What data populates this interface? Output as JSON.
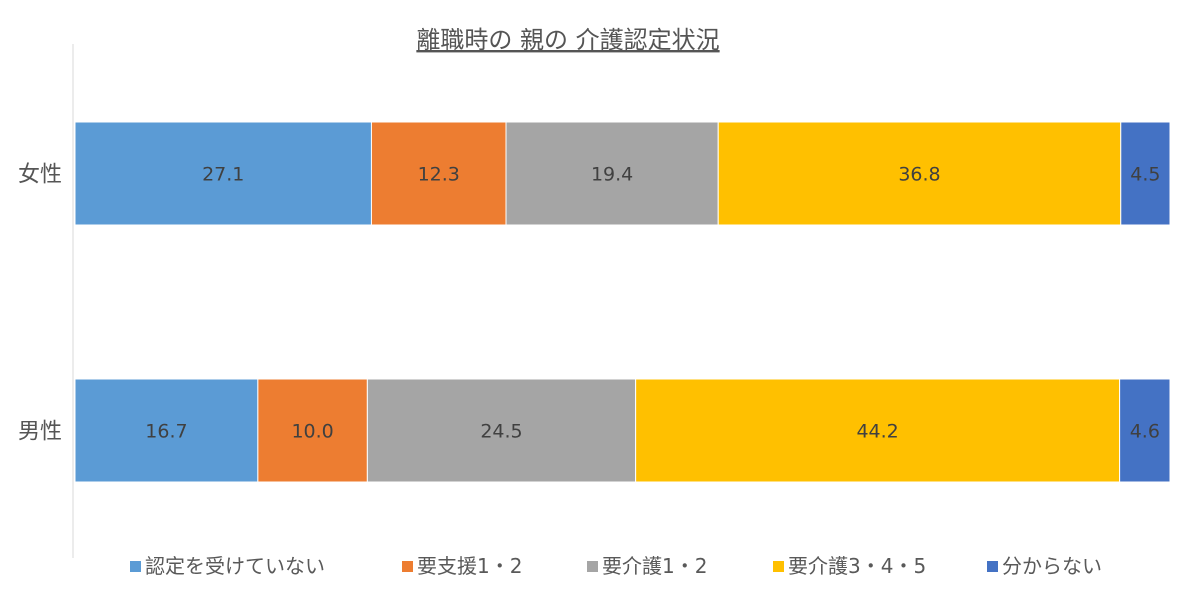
{
  "chart_data": {
    "type": "bar",
    "orientation": "horizontal",
    "stacked": true,
    "percent_stacked": true,
    "title": "離職時の 親の 介護認定状況",
    "categories": [
      "女性",
      "男性"
    ],
    "series": [
      {
        "name": "認定を受けていない",
        "values": [
          27.1,
          16.7
        ],
        "color": "#5B9BD5"
      },
      {
        "name": "要支援1・2",
        "values": [
          12.3,
          10.0
        ],
        "color": "#ED7D31"
      },
      {
        "name": "要介護1・2",
        "values": [
          19.4,
          24.5
        ],
        "color": "#A5A5A5"
      },
      {
        "name": "要介護3・4・5",
        "values": [
          36.8,
          44.2
        ],
        "color": "#FFC000"
      },
      {
        "name": "分からない",
        "values": [
          4.5,
          4.6
        ],
        "color": "#4472C4"
      }
    ],
    "legend_position": "bottom",
    "grid": false
  }
}
